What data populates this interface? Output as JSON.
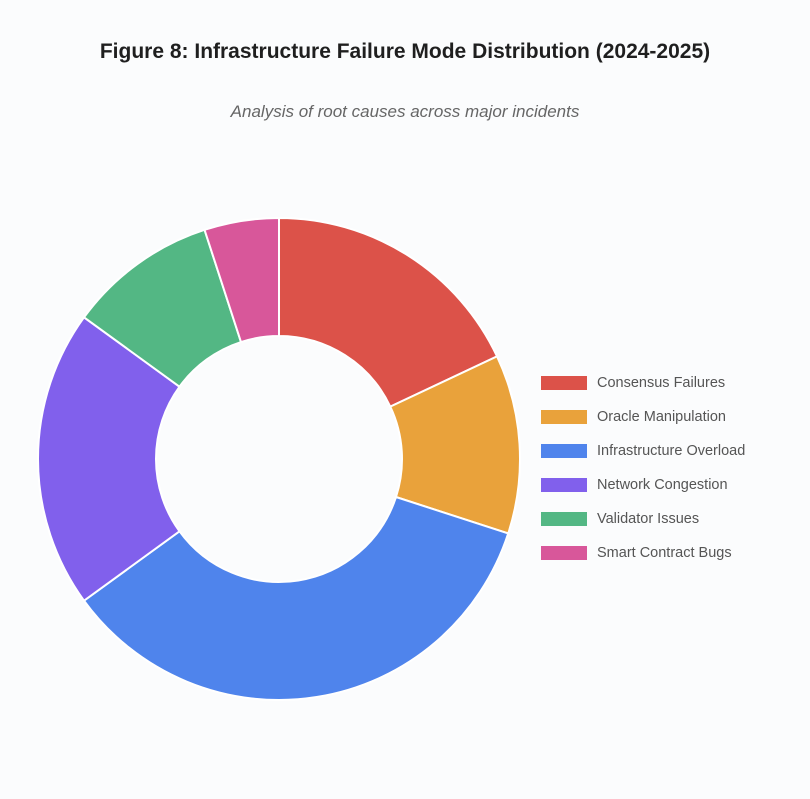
{
  "chart_data": {
    "type": "pie",
    "donut": true,
    "title": "Figure 8: Infrastructure Failure Mode Distribution (2024-2025)",
    "subtitle": "Analysis of root causes across major incidents",
    "legend_position": "right",
    "categories": [
      "Consensus Failures",
      "Oracle Manipulation",
      "Infrastructure Overload",
      "Network Congestion",
      "Validator Issues",
      "Smart Contract Bugs"
    ],
    "values": [
      18,
      12,
      35,
      20,
      10,
      5
    ],
    "colors": [
      "#dc5249",
      "#e9a23b",
      "#4f84ec",
      "#8160ec",
      "#53b784",
      "#d8579a"
    ]
  }
}
